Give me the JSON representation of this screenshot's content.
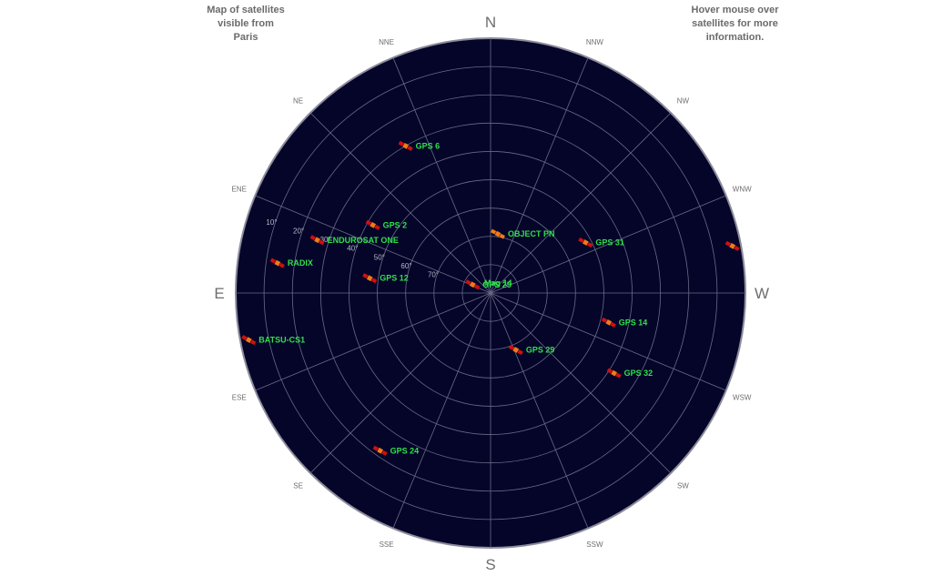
{
  "notes": {
    "left": "Map of satellites\nvisible from\nParis",
    "right": "Hover mouse over\nsatellites for more\ninformation."
  },
  "compass": {
    "major": [
      {
        "label": "N",
        "azimuth": 0
      },
      {
        "label": "E",
        "azimuth": 90
      },
      {
        "label": "S",
        "azimuth": 180
      },
      {
        "label": "W",
        "azimuth": 270
      }
    ],
    "minor": [
      {
        "label": "NNE",
        "azimuth": 22.5
      },
      {
        "label": "NE",
        "azimuth": 45
      },
      {
        "label": "ENE",
        "azimuth": 67.5
      },
      {
        "label": "ESE",
        "azimuth": 112.5
      },
      {
        "label": "SE",
        "azimuth": 135
      },
      {
        "label": "SSE",
        "azimuth": 157.5
      },
      {
        "label": "SSW",
        "azimuth": 202.5
      },
      {
        "label": "SW",
        "azimuth": 225
      },
      {
        "label": "WSW",
        "azimuth": 247.5
      },
      {
        "label": "WNW",
        "azimuth": 292.5
      },
      {
        "label": "NW",
        "azimuth": 315
      },
      {
        "label": "NNW",
        "azimuth": 337.5
      }
    ]
  },
  "elevation_rings": [
    {
      "label": "10°",
      "elevation": 10
    },
    {
      "label": "20°",
      "elevation": 20
    },
    {
      "label": "30°",
      "elevation": 30
    },
    {
      "label": "40°",
      "elevation": 40
    },
    {
      "label": "50°",
      "elevation": 50
    },
    {
      "label": "60°",
      "elevation": 60
    },
    {
      "label": "70°",
      "elevation": 70
    },
    {
      "label": "",
      "elevation": 80
    }
  ],
  "satellites": [
    {
      "name": "GPS 6",
      "azimuth": 30,
      "elevation": 30
    },
    {
      "name": "OBJECT PN",
      "azimuth": 353,
      "elevation": 69
    },
    {
      "name": "GPS 31",
      "azimuth": 298,
      "elevation": 52
    },
    {
      "name": "GP",
      "azimuth": 281,
      "elevation": 3
    },
    {
      "name": "GPS 2",
      "azimuth": 60,
      "elevation": 42
    },
    {
      "name": "ENDUROSAT ONE",
      "azimuth": 73,
      "elevation": 26
    },
    {
      "name": "RADIX",
      "azimuth": 82,
      "elevation": 14
    },
    {
      "name": "GPS 12",
      "azimuth": 83,
      "elevation": 47
    },
    {
      "name": "GPS 25",
      "azimuth": 65,
      "elevation": 83
    },
    {
      "name": "Mag 14",
      "azimuth": 0,
      "elevation": 90
    },
    {
      "name": "GPS 14",
      "azimuth": 256,
      "elevation": 47
    },
    {
      "name": "GPS 29",
      "azimuth": 204,
      "elevation": 68
    },
    {
      "name": "GPS 32",
      "azimuth": 237,
      "elevation": 38
    },
    {
      "name": "BATSU-CS1",
      "azimuth": 101,
      "elevation": 3
    },
    {
      "name": "GPS 24",
      "azimuth": 145,
      "elevation": 22
    }
  ],
  "colors": {
    "sky": "#05052a",
    "grid": "#6a6a86",
    "label": "#2fe04a",
    "satellite_body": "#d11010",
    "satellite_panel": "#f07a1a",
    "rim": "#8c8c9c"
  }
}
